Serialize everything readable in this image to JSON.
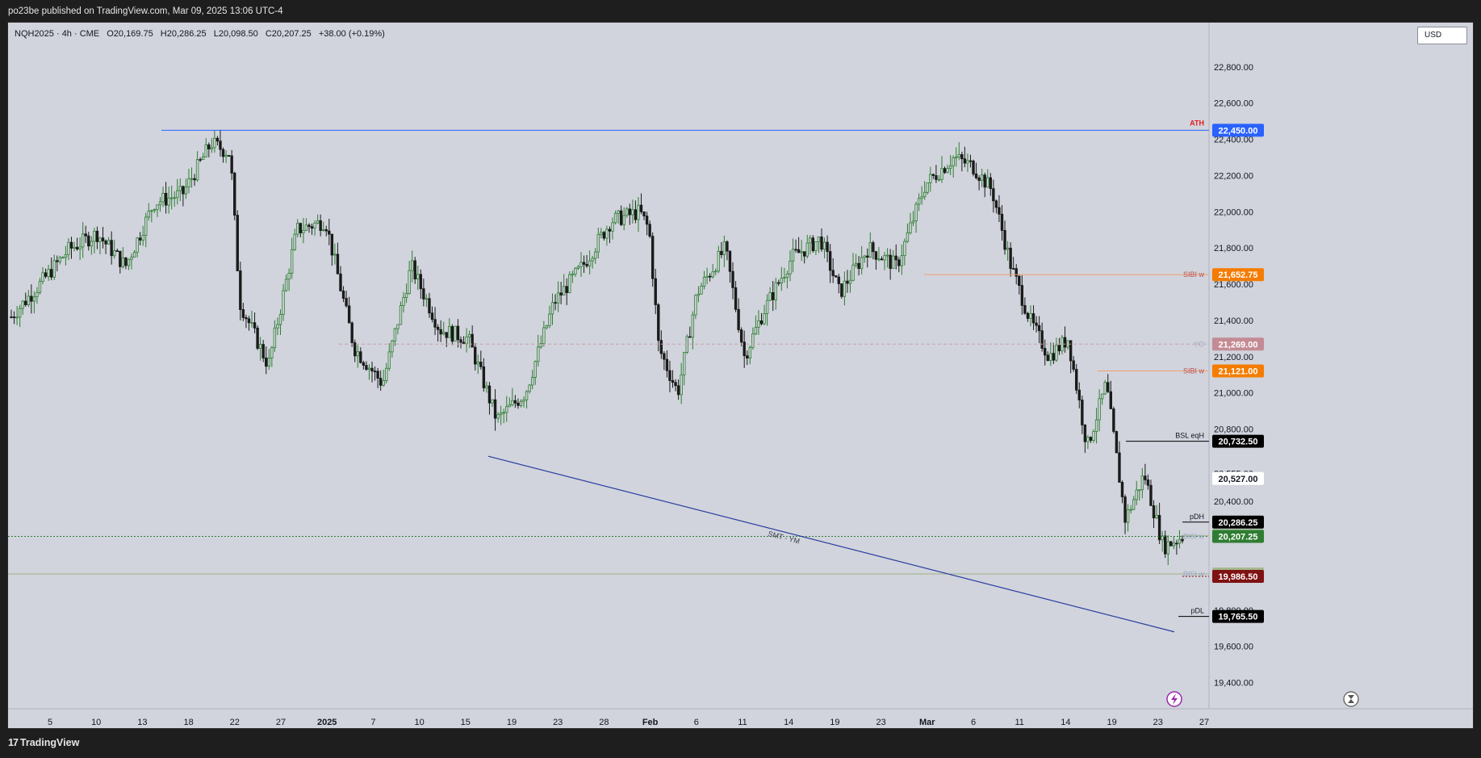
{
  "header": {
    "published": "po23be published on TradingView.com, Mar 09, 2025 13:06 UTC-4"
  },
  "legend": {
    "symbol": "NQH2025 · 4h · CME",
    "open": "O20,169.75",
    "high": "H20,286.25",
    "low": "L20,098.50",
    "close": "C20,207.25",
    "change": "+38.00 (+0.19%)"
  },
  "currency": "USD",
  "footer": {
    "logo_mark": "17",
    "logo_text": "TradingView"
  },
  "colors": {
    "background": "#d1d4dc",
    "bull": "#2e7d32",
    "bear": "#1b1b1b",
    "ath": "#2962ff",
    "sibi": "#f57c00"
  },
  "chart_data": {
    "type": "candlestick",
    "instrument": "NQH2025",
    "timeframe": "4h",
    "exchange": "CME",
    "ylim": [
      19300,
      23000
    ],
    "y_ticks": [
      "19,400.00",
      "19,600.00",
      "19,800.00",
      "20,000.00",
      "20,200.00",
      "20,400.00",
      "20,555.00",
      "20,800.00",
      "21,000.00",
      "21,200.00",
      "21,400.00",
      "21,600.00",
      "21,800.00",
      "22,000.00",
      "22,200.00",
      "22,400.00",
      "22,600.00",
      "22,800.00"
    ],
    "y_tick_values": [
      19400,
      19600,
      19800,
      20000,
      20200,
      20400,
      20555,
      20800,
      21000,
      21200,
      21400,
      21600,
      21800,
      22000,
      22200,
      22400,
      22600,
      22800
    ],
    "x_ticks": [
      "5",
      "10",
      "13",
      "18",
      "22",
      "27",
      "2025",
      "7",
      "10",
      "15",
      "19",
      "23",
      "28",
      "Feb",
      "6",
      "11",
      "14",
      "19",
      "23",
      "Mar",
      "6",
      "11",
      "14",
      "19",
      "23",
      "27"
    ],
    "price_path": [
      {
        "x": 0,
        "y": 21420
      },
      {
        "x": 3,
        "y": 21600
      },
      {
        "x": 6,
        "y": 21790
      },
      {
        "x": 9,
        "y": 21880
      },
      {
        "x": 12,
        "y": 21700
      },
      {
        "x": 15,
        "y": 22050
      },
      {
        "x": 18,
        "y": 22100
      },
      {
        "x": 21,
        "y": 22380
      },
      {
        "x": 23,
        "y": 22320
      },
      {
        "x": 24,
        "y": 21500
      },
      {
        "x": 27,
        "y": 21150
      },
      {
        "x": 30,
        "y": 21900
      },
      {
        "x": 33,
        "y": 21950
      },
      {
        "x": 36,
        "y": 21250
      },
      {
        "x": 39,
        "y": 21050
      },
      {
        "x": 42,
        "y": 21700
      },
      {
        "x": 45,
        "y": 21350
      },
      {
        "x": 48,
        "y": 21300
      },
      {
        "x": 51,
        "y": 20850
      },
      {
        "x": 54,
        "y": 21000
      },
      {
        "x": 57,
        "y": 21500
      },
      {
        "x": 60,
        "y": 21700
      },
      {
        "x": 63,
        "y": 21950
      },
      {
        "x": 66,
        "y": 22000
      },
      {
        "x": 67,
        "y": 21900
      },
      {
        "x": 68,
        "y": 21250
      },
      {
        "x": 70,
        "y": 21000
      },
      {
        "x": 72,
        "y": 21550
      },
      {
        "x": 75,
        "y": 21800
      },
      {
        "x": 77,
        "y": 21200
      },
      {
        "x": 79,
        "y": 21450
      },
      {
        "x": 82,
        "y": 21750
      },
      {
        "x": 85,
        "y": 21850
      },
      {
        "x": 87,
        "y": 21550
      },
      {
        "x": 90,
        "y": 21800
      },
      {
        "x": 93,
        "y": 21700
      },
      {
        "x": 96,
        "y": 22150
      },
      {
        "x": 99,
        "y": 22300
      },
      {
        "x": 101,
        "y": 22250
      },
      {
        "x": 103,
        "y": 22120
      },
      {
        "x": 105,
        "y": 21700
      },
      {
        "x": 107,
        "y": 21400
      },
      {
        "x": 109,
        "y": 21200
      },
      {
        "x": 111,
        "y": 21300
      },
      {
        "x": 113,
        "y": 20700
      },
      {
        "x": 115,
        "y": 21050
      },
      {
        "x": 117,
        "y": 20300
      },
      {
        "x": 119,
        "y": 20550
      },
      {
        "x": 121,
        "y": 20150
      },
      {
        "x": 123,
        "y": 20207
      }
    ],
    "price_x_max": 123,
    "levels": [
      {
        "label": "ATH",
        "price": "22,450.00",
        "value": 22450,
        "line_color": "#2962ff",
        "tag_bg": "#2962ff",
        "tag_fg": "#ffffff",
        "label_color": "#e02020",
        "style": "solid"
      },
      {
        "label": "SIBI w",
        "price": "21,652.75",
        "value": 21652.75,
        "line_color": "#f0a070",
        "tag_bg": "#f57c00",
        "tag_fg": "#ffffff",
        "label_color": "#c0504d",
        "style": "solid"
      },
      {
        "label": "YO",
        "price": "21,269.00",
        "value": 21269,
        "line_color": "#c9a2a8",
        "tag_bg": "#c48b94",
        "tag_fg": "#ffffff",
        "label_color": "#9fa8c9",
        "style": "dashed"
      },
      {
        "label": "SIBI w",
        "price": "21,121.00",
        "value": 21121,
        "line_color": "#f0a070",
        "tag_bg": "#f57c00",
        "tag_fg": "#ffffff",
        "label_color": "#c0504d",
        "style": "solid"
      },
      {
        "label": "BSL eqH",
        "price": "20,732.50",
        "value": 20732.5,
        "line_color": "#000000",
        "tag_bg": "#000000",
        "tag_fg": "#ffffff",
        "label_color": "#131722",
        "style": "solid"
      },
      {
        "label": "",
        "price": "20,527.00",
        "value": 20527,
        "line_color": "#ffffff",
        "tag_bg": "#ffffff",
        "tag_fg": "#131722",
        "label_color": "#9fa8c9",
        "style": "solid"
      },
      {
        "label": "pDH",
        "price": "20,286.25",
        "value": 20286.25,
        "line_color": "#000000",
        "tag_bg": "#000000",
        "tag_fg": "#ffffff",
        "label_color": "#131722",
        "style": "solid"
      },
      {
        "label": "",
        "price": "20,212.00",
        "value": 20212,
        "line_color": "#9fba8f",
        "tag_bg": "#a5c29a",
        "tag_fg": "#131722",
        "label_color": "#131722",
        "style": "solid"
      },
      {
        "label": "BISI w",
        "price": "20,207.25",
        "value": 20207.25,
        "line_color": "#2e7d32",
        "tag_bg": "#2e7d32",
        "tag_fg": "#ffffff",
        "label_color": "#9fa8c9",
        "style": "dotted"
      },
      {
        "label": "BISI w",
        "price": "20,000.00",
        "value": 20000,
        "line_color": "#9fb07f",
        "tag_bg": "#a5b88c",
        "tag_fg": "#131722",
        "label_color": "#9fa8c9",
        "style": "solid"
      },
      {
        "label": "",
        "price": "19,986.50",
        "value": 19986.5,
        "line_color": "#8b1a1a",
        "tag_bg": "#7f1212",
        "tag_fg": "#ffffff",
        "label_color": "#131722",
        "style": "dotted"
      },
      {
        "label": "pDL",
        "price": "19,765.50",
        "value": 19765.5,
        "line_color": "#000000",
        "tag_bg": "#000000",
        "tag_fg": "#ffffff",
        "label_color": "#131722",
        "style": "solid"
      }
    ],
    "trendline": {
      "label": "SMT - YM"
    }
  }
}
